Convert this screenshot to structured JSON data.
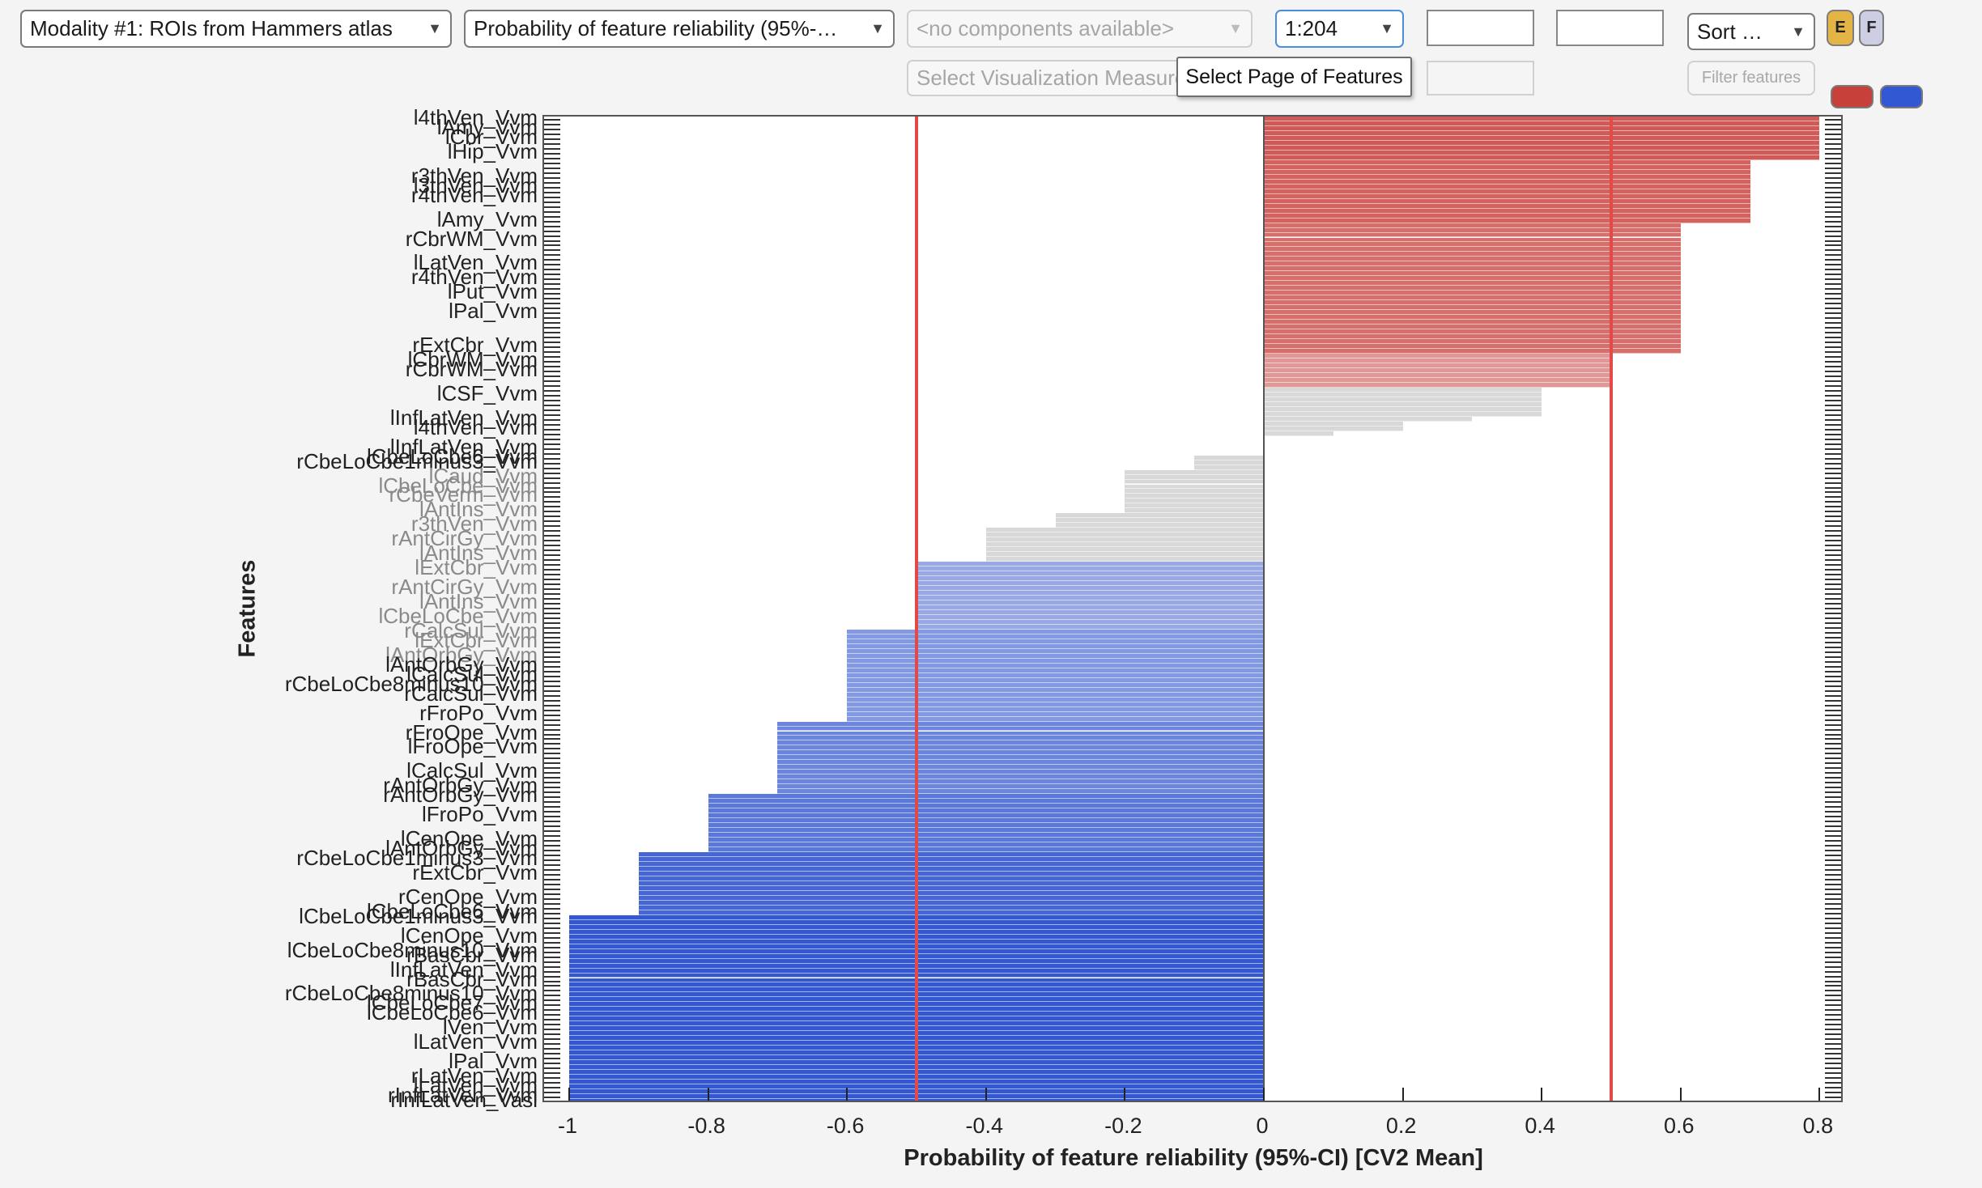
{
  "toolbar": {
    "modality_select": "Modality #1: ROIs from Hammers atlas",
    "measure_select": "Probability of feature reliability (95%-…",
    "components_select": "<no components available>",
    "page_select": "1:204",
    "edit_box_1": "",
    "edit_box_2": "",
    "sort_select": "Sort …",
    "e_button": "E",
    "f_button": "F",
    "visualization_measure_placeholder": "Select Visualization Measure",
    "edit_box_3": "",
    "filter_button": "Filter features",
    "tooltip": "Select Page of Features",
    "swatch_positive_color": "#c8403a",
    "swatch_negative_color": "#3358d4"
  },
  "colors": {
    "e_button_bg": "#e5b447",
    "f_button_bg": "#cdcde3",
    "threshold_line": "#e24a48"
  },
  "chart_data": {
    "type": "bar",
    "orientation": "horizontal",
    "title": "",
    "xlabel": "Probability of feature reliability (95%-CI) [CV2 Mean]",
    "ylabel": "Features",
    "xlim": [
      -1.02,
      0.84
    ],
    "xticks": [
      -1,
      -0.8,
      -0.6,
      -0.4,
      -0.2,
      0,
      0.2,
      0.4,
      0.6,
      0.8
    ],
    "xtick_labels": [
      "-1",
      "-0.8",
      "-0.6",
      "-0.4",
      "-0.2",
      "0",
      "0.2",
      "0.4",
      "0.6",
      "0.8"
    ],
    "threshold_lines": [
      -0.5,
      0.5
    ],
    "n_features": 204,
    "grid": false,
    "legend": null,
    "groups": [
      {
        "value": 0.8,
        "count": 9,
        "color": "#d05a57"
      },
      {
        "value": 0.7,
        "count": 13,
        "color": "#d4625f"
      },
      {
        "value": 0.6,
        "count": 27,
        "color": "#d66f6c"
      },
      {
        "value": 0.5,
        "count": 7,
        "color": "#e09896"
      },
      {
        "value": 0.4,
        "count": 6,
        "color": "#d8d8d8"
      },
      {
        "value": 0.3,
        "count": 1,
        "color": "#d8d8d8"
      },
      {
        "value": 0.2,
        "count": 2,
        "color": "#d8d8d8"
      },
      {
        "value": 0.1,
        "count": 1,
        "color": "#d8d8d8"
      },
      {
        "value": 0.0,
        "count": 4,
        "color": "#d8d8d8"
      },
      {
        "value": -0.1,
        "count": 3,
        "color": "#d8d8d8"
      },
      {
        "value": -0.2,
        "count": 9,
        "color": "#d8d8d8"
      },
      {
        "value": -0.3,
        "count": 3,
        "color": "#d8d8d8"
      },
      {
        "value": -0.4,
        "count": 7,
        "color": "#d8d8d8"
      },
      {
        "value": -0.5,
        "count": 14,
        "color": "#98a9e6"
      },
      {
        "value": -0.6,
        "count": 19,
        "color": "#8399e3"
      },
      {
        "value": -0.7,
        "count": 15,
        "color": "#6c86dd"
      },
      {
        "value": -0.8,
        "count": 12,
        "color": "#5a77da"
      },
      {
        "value": -0.9,
        "count": 13,
        "color": "#4766d6"
      },
      {
        "value": -1.0,
        "count": 39,
        "color": "#3458d2"
      }
    ],
    "visible_feature_labels": [
      {
        "row": 0,
        "label": "l4thVen_Vvm",
        "gray": false
      },
      {
        "row": 2,
        "label": "lAmy_Vvm",
        "gray": false
      },
      {
        "row": 4,
        "label": "lCbr_Vvm",
        "gray": false
      },
      {
        "row": 7,
        "label": "lHip_Vvm",
        "gray": false
      },
      {
        "row": 12,
        "label": "r3thVen_Vvm",
        "gray": false
      },
      {
        "row": 14,
        "label": "l3thVen_Vvm",
        "gray": false
      },
      {
        "row": 16,
        "label": "r4thVen_Vvm",
        "gray": false
      },
      {
        "row": 21,
        "label": "lAmy_Vvm",
        "gray": false
      },
      {
        "row": 25,
        "label": "rCbrWM_Vvm",
        "gray": false
      },
      {
        "row": 30,
        "label": "lLatVen_Vvm",
        "gray": false
      },
      {
        "row": 33,
        "label": "r4thVen_Vvm",
        "gray": false
      },
      {
        "row": 36,
        "label": "lPut_Vvm",
        "gray": false
      },
      {
        "row": 40,
        "label": "lPal_Vvm",
        "gray": false
      },
      {
        "row": 47,
        "label": "rExtCbr_Vvm",
        "gray": false
      },
      {
        "row": 50,
        "label": "lCbrWM_Vvm",
        "gray": false
      },
      {
        "row": 52,
        "label": "rCbrWM_Vvm",
        "gray": false
      },
      {
        "row": 57,
        "label": "lCSF_Vvm",
        "gray": false
      },
      {
        "row": 62,
        "label": "lInfLatVen_Vvm",
        "gray": false
      },
      {
        "row": 64,
        "label": "l4thVen_Vvm",
        "gray": false
      },
      {
        "row": 68,
        "label": "lInfLatVen_Vvm",
        "gray": false
      },
      {
        "row": 70,
        "label": "lCbeLoCbe6_Vvm",
        "gray": false
      },
      {
        "row": 71,
        "label": "rCbeLoCbe1minus3_Vvm",
        "gray": false
      },
      {
        "row": 74,
        "label": "lCaud_Vvm",
        "gray": true
      },
      {
        "row": 76,
        "label": "lCbeLoCbe_Vvm",
        "gray": true
      },
      {
        "row": 78,
        "label": "rCbeVerm_Vvm",
        "gray": true
      },
      {
        "row": 81,
        "label": "lAntIns_Vvm",
        "gray": true
      },
      {
        "row": 84,
        "label": "r3thVen_Vvm",
        "gray": true
      },
      {
        "row": 87,
        "label": "rAntCirGy_Vvm",
        "gray": true
      },
      {
        "row": 90,
        "label": "lAntIns_Vvm",
        "gray": true
      },
      {
        "row": 93,
        "label": "lExtCbr_Vvm",
        "gray": true
      },
      {
        "row": 97,
        "label": "rAntCirGy_Vvm",
        "gray": true
      },
      {
        "row": 100,
        "label": "lAntIns_Vvm",
        "gray": true
      },
      {
        "row": 103,
        "label": "lCbeLoCbe_Vvm",
        "gray": true
      },
      {
        "row": 106,
        "label": "rCalcSul_Vvm",
        "gray": true
      },
      {
        "row": 108,
        "label": "lExtCbr_Vvm",
        "gray": true
      },
      {
        "row": 111,
        "label": "lAntOrbGy_Vvm",
        "gray": true
      },
      {
        "row": 113,
        "label": "lAntOrbGy_Vvm",
        "gray": false
      },
      {
        "row": 115,
        "label": "lCalcSul_Vvm",
        "gray": false
      },
      {
        "row": 117,
        "label": "rCbeLoCbe8minus10_Vvm",
        "gray": false
      },
      {
        "row": 119,
        "label": "rCalcSul_Vvm",
        "gray": false
      },
      {
        "row": 123,
        "label": "rFroPo_Vvm",
        "gray": false
      },
      {
        "row": 127,
        "label": "rFroOpe_Vvm",
        "gray": false
      },
      {
        "row": 130,
        "label": "lFroOpe_Vvm",
        "gray": false
      },
      {
        "row": 135,
        "label": "lCalcSul_Vvm",
        "gray": false
      },
      {
        "row": 138,
        "label": "rAntOrbGy_Vvm",
        "gray": false
      },
      {
        "row": 140,
        "label": "rAntOrbGy_Vvm",
        "gray": false
      },
      {
        "row": 144,
        "label": "lFroPo_Vvm",
        "gray": false
      },
      {
        "row": 149,
        "label": "lCenOpe_Vvm",
        "gray": false
      },
      {
        "row": 151,
        "label": "lAntOrbGy_Vvm",
        "gray": false
      },
      {
        "row": 153,
        "label": "rCbeLoCbe1minus3_Vvm",
        "gray": false
      },
      {
        "row": 156,
        "label": "rExtCbr_Vvm",
        "gray": false
      },
      {
        "row": 161,
        "label": "rCenOpe_Vvm",
        "gray": false
      },
      {
        "row": 164,
        "label": "lCbeLoCbe6_Vvm",
        "gray": false
      },
      {
        "row": 165,
        "label": "lCbeLoCbe1minus3_Vvm",
        "gray": false
      },
      {
        "row": 169,
        "label": "lCenOpe_Vvm",
        "gray": false
      },
      {
        "row": 172,
        "label": "lCbeLoCbe8minus10_Vvm",
        "gray": false
      },
      {
        "row": 173,
        "label": "rBasCbr_Vvm",
        "gray": false
      },
      {
        "row": 176,
        "label": "lInfLatVen_Vvm",
        "gray": false
      },
      {
        "row": 178,
        "label": "rBasCbr_Vvm",
        "gray": false
      },
      {
        "row": 181,
        "label": "rCbeLoCbe8minus10_Vvm",
        "gray": false
      },
      {
        "row": 183,
        "label": "lCbeLoCbe7_Vvm",
        "gray": false
      },
      {
        "row": 185,
        "label": "lCbeLoCbe6_Vvm",
        "gray": false
      },
      {
        "row": 188,
        "label": "lVen_Vvm",
        "gray": false
      },
      {
        "row": 191,
        "label": "lLatVen_Vvm",
        "gray": false
      },
      {
        "row": 195,
        "label": "lPal_Vvm",
        "gray": false
      },
      {
        "row": 198,
        "label": "rLatVen_Vvm",
        "gray": false
      },
      {
        "row": 200,
        "label": "lLatVen_Vvm",
        "gray": false
      },
      {
        "row": 202,
        "label": "rInfLatVen_Vvm",
        "gray": false
      },
      {
        "row": 203,
        "label": "rInfLatVen_Vasl",
        "gray": false
      }
    ]
  }
}
